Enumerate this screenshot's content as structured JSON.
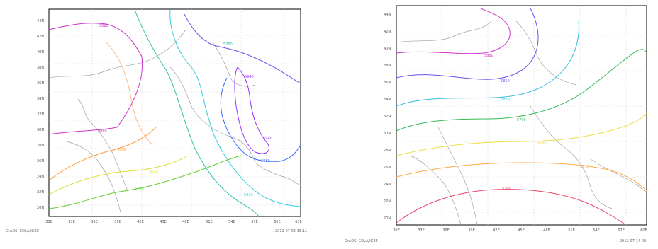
{
  "maps": [
    {
      "id": "left",
      "y_ticks": [
        "44N",
        "42N",
        "40N",
        "38N",
        "36N",
        "34N",
        "32N",
        "30N",
        "28N",
        "26N",
        "24N",
        "22N",
        "20N"
      ],
      "x_ticks": [
        "30E",
        "33E",
        "36E",
        "39E",
        "42E",
        "45E",
        "48E",
        "51E",
        "54E",
        "57E",
        "60E",
        "63E"
      ],
      "footer_left": "GrADS: COLA/IGES",
      "footer_right": "2012-07-05-15:11",
      "contours": [
        {
          "label": "5880",
          "color": "#cc33cc"
        },
        {
          "label": "5880",
          "color": "#cc33cc"
        },
        {
          "label": "5940",
          "color": "#9933ff"
        },
        {
          "label": "5940",
          "color": "#9933ff"
        },
        {
          "label": "5880",
          "color": "#3366ff"
        },
        {
          "label": "5820",
          "color": "#33ccdd"
        },
        {
          "label": "5760",
          "color": "#33bbaa"
        },
        {
          "label": "5700",
          "color": "#66cc33"
        },
        {
          "label": "5640",
          "color": "#dddd33"
        },
        {
          "label": "5580",
          "color": "#ff9933"
        }
      ]
    },
    {
      "id": "right",
      "y_ticks": [
        "44N",
        "42N",
        "40N",
        "38N",
        "36N",
        "34N",
        "32N",
        "30N",
        "28N",
        "26N",
        "24N",
        "22N",
        "20N"
      ],
      "x_ticks": [
        "30E",
        "33E",
        "36E",
        "39E",
        "42E",
        "45E",
        "48E",
        "51E",
        "54E",
        "57E",
        "60E"
      ],
      "footer_left": "GrADS: COLA/IGES",
      "footer_right": "2012-07-14-08",
      "contours": [
        {
          "label": "5880",
          "color": "#cc33cc"
        },
        {
          "label": "5850",
          "color": "#6655ee"
        },
        {
          "label": "5820",
          "color": "#33bbdd"
        },
        {
          "label": "5790",
          "color": "#33bb55"
        },
        {
          "label": "5760",
          "color": "#eedd44"
        },
        {
          "label": "5730",
          "color": "#ffaa44"
        },
        {
          "label": "5700",
          "color": "#ee4466"
        }
      ]
    }
  ]
}
